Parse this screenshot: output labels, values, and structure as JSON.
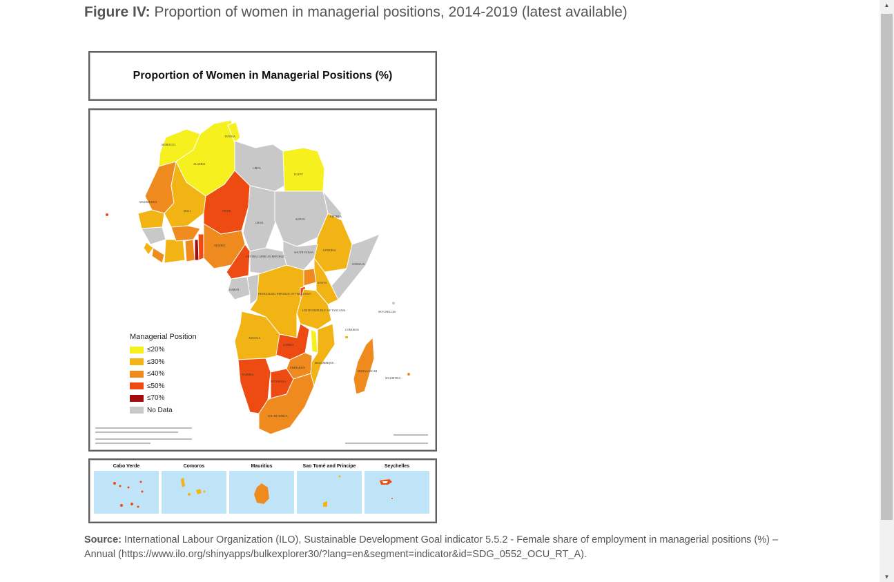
{
  "figure": {
    "label": "Figure IV:",
    "title": "Proportion of women in managerial positions, 2014-2019 (latest available)"
  },
  "map": {
    "title": "Proportion of Women in Managerial Positions (%)",
    "legend": {
      "title": "Managerial Position",
      "items": [
        {
          "label": "≤20%",
          "color": "#f5f01e"
        },
        {
          "label": "≤30%",
          "color": "#f2b415"
        },
        {
          "label": "≤40%",
          "color": "#ef8a1f"
        },
        {
          "label": "≤50%",
          "color": "#ee4b12"
        },
        {
          "label": "≤70%",
          "color": "#a30c0c"
        },
        {
          "label": "No Data",
          "color": "#c8c8c8"
        }
      ]
    },
    "countries": [
      {
        "name": "MOROCCO",
        "band": "≤20%"
      },
      {
        "name": "ALGERIA",
        "band": "≤20%"
      },
      {
        "name": "TUNISIA",
        "band": "≤20%"
      },
      {
        "name": "LIBYA",
        "band": "No Data"
      },
      {
        "name": "EGYPT",
        "band": "≤20%"
      },
      {
        "name": "MAURITANIA",
        "band": "≤40%"
      },
      {
        "name": "MALI",
        "band": "≤30%"
      },
      {
        "name": "NIGER",
        "band": "≤50%"
      },
      {
        "name": "CHAD",
        "band": "No Data"
      },
      {
        "name": "SUDAN",
        "band": "No Data"
      },
      {
        "name": "ERITREA",
        "band": "No Data"
      },
      {
        "name": "ETHIOPIA",
        "band": "≤30%"
      },
      {
        "name": "SOMALIA",
        "band": "No Data"
      },
      {
        "name": "NIGERIA",
        "band": "≤40%"
      },
      {
        "name": "CENTRAL AFRICAN REPUBLIC",
        "band": "No Data"
      },
      {
        "name": "SOUTH SUDAN",
        "band": "No Data"
      },
      {
        "name": "KENYA",
        "band": "≤30%"
      },
      {
        "name": "GABON",
        "band": "No Data"
      },
      {
        "name": "DEMOCRATIC REPUBLIC OF THE CONGO",
        "band": "≤30%"
      },
      {
        "name": "UNITED REPUBLIC OF TANZANIA",
        "band": "≤30%"
      },
      {
        "name": "ANGOLA",
        "band": "≤30%"
      },
      {
        "name": "ZAMBIA",
        "band": "≤50%"
      },
      {
        "name": "MOZAMBIQUE",
        "band": "≤30%"
      },
      {
        "name": "MADAGASCAR",
        "band": "≤40%"
      },
      {
        "name": "ZIMBABWE",
        "band": "≤40%"
      },
      {
        "name": "NAMIBIA",
        "band": "≤50%"
      },
      {
        "name": "BOTSWANA",
        "band": "≤50%"
      },
      {
        "name": "SOUTH AFRICA",
        "band": "≤40%"
      },
      {
        "name": "SEYCHELLES",
        "band": "No Data"
      },
      {
        "name": "MAURITIUS",
        "band": "≤40%"
      },
      {
        "name": "COMOROS",
        "band": "≤30%"
      }
    ],
    "insets": [
      {
        "label": "Cabo Verde"
      },
      {
        "label": "Comoros"
      },
      {
        "label": "Mauritius"
      },
      {
        "label": "Sao Tomé and Principe"
      },
      {
        "label": "Seychelles"
      }
    ]
  },
  "source": {
    "label": "Source:",
    "text": "International Labour Organization (ILO), Sustainable Development Goal indicator 5.5.2 - Female share of employment in managerial positions (%) – Annual (https://www.ilo.org/shinyapps/bulkexplorer30/?lang=en&segment=indicator&id=SDG_0552_OCU_RT_A)."
  }
}
